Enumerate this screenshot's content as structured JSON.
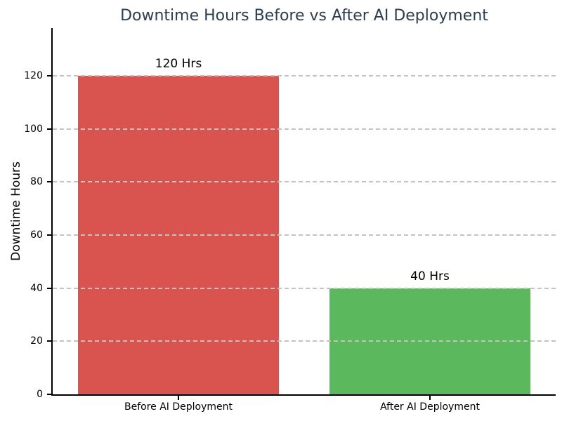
{
  "chart_data": {
    "type": "bar",
    "title": "Downtime Hours Before vs After AI Deployment",
    "categories": [
      "Before AI Deployment",
      "After AI Deployment"
    ],
    "values": [
      120,
      40
    ],
    "bar_labels": [
      "120 Hrs",
      "40 Hrs"
    ],
    "bar_colors": [
      "#d9534f",
      "#5cb85c"
    ],
    "xlabel": "",
    "ylabel": "Downtime Hours",
    "ylim": [
      0,
      138
    ],
    "yticks": [
      0,
      20,
      40,
      60,
      80,
      100,
      120
    ],
    "grid": {
      "axis": "y",
      "style": "dashed",
      "color": "#c3c3c3",
      "drawn_over_bars": true
    },
    "legend": "none",
    "title_color": "#2c3e50",
    "text_color": "#000000",
    "background": "#ffffff",
    "spine_color": "#000000"
  }
}
